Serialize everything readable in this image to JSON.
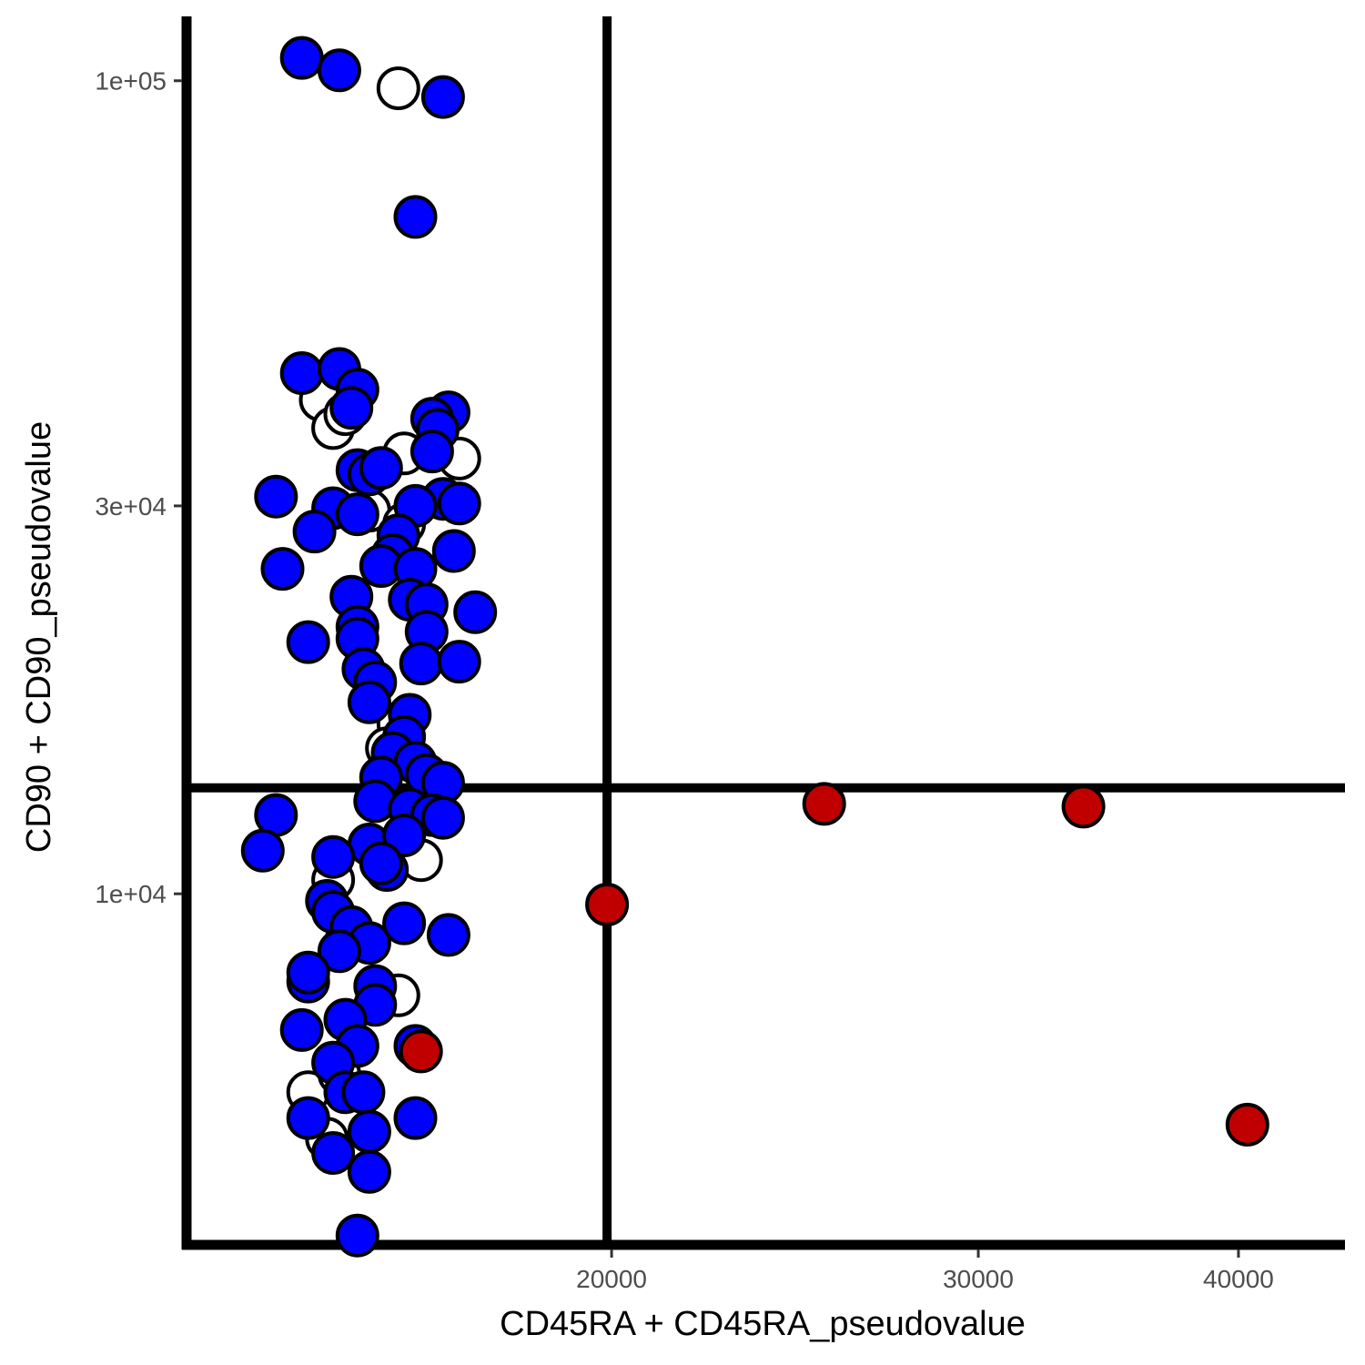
{
  "chart_data": {
    "type": "scatter",
    "xlabel": "CD45RA + CD45RA_pseudovalue",
    "ylabel": "CD90 + CD90_pseudovalue",
    "x_scale": "log",
    "y_scale": "log",
    "xlim": [
      12500,
      45000
    ],
    "ylim": [
      3700,
      120000
    ],
    "x_ticks": [
      {
        "value": 20000,
        "label": "20000"
      },
      {
        "value": 30000,
        "label": "30000"
      },
      {
        "value": 40000,
        "label": "40000"
      }
    ],
    "y_ticks": [
      {
        "value": 10000,
        "label": "1e+04"
      },
      {
        "value": 30000,
        "label": "3e+04"
      },
      {
        "value": 100000,
        "label": "1e+05"
      }
    ],
    "threshold_lines": {
      "x": 19900,
      "y": 13500
    },
    "grid": false,
    "legend": "none",
    "colors": {
      "blue": "#0000ff",
      "red": "#c00000",
      "hollow": "#ffffff",
      "outline": "#000000"
    },
    "series": [
      {
        "fill": "hollow",
        "points": [
          [
            15800,
            97900
          ],
          [
            14500,
            40500
          ],
          [
            14700,
            37400
          ],
          [
            14900,
            38900
          ],
          [
            15900,
            34800
          ],
          [
            16900,
            34300
          ],
          [
            15300,
            29600
          ],
          [
            15900,
            28500
          ],
          [
            15800,
            16200
          ],
          [
            15600,
            15100
          ],
          [
            14700,
            10400
          ],
          [
            16200,
            11000
          ],
          [
            14900,
            8700
          ],
          [
            15800,
            7500
          ],
          [
            14300,
            5700
          ],
          [
            14800,
            6000
          ],
          [
            14600,
            5000
          ]
        ]
      },
      {
        "fill": "blue",
        "points": [
          [
            14200,
            106700
          ],
          [
            14800,
            103000
          ],
          [
            16600,
            95500
          ],
          [
            16100,
            68000
          ],
          [
            14200,
            43700
          ],
          [
            14800,
            44200
          ],
          [
            15100,
            41700
          ],
          [
            15000,
            39600
          ],
          [
            16700,
            39100
          ],
          [
            16400,
            38400
          ],
          [
            16500,
            37200
          ],
          [
            16400,
            35000
          ],
          [
            15100,
            33200
          ],
          [
            15300,
            32800
          ],
          [
            15500,
            33400
          ],
          [
            13800,
            30800
          ],
          [
            16600,
            30600
          ],
          [
            16900,
            30200
          ],
          [
            14700,
            29800
          ],
          [
            15100,
            29300
          ],
          [
            16100,
            30000
          ],
          [
            14400,
            27900
          ],
          [
            15800,
            27600
          ],
          [
            15700,
            26100
          ],
          [
            16800,
            26400
          ],
          [
            15500,
            25300
          ],
          [
            16100,
            25100
          ],
          [
            13900,
            25100
          ],
          [
            15000,
            23200
          ],
          [
            16000,
            23000
          ],
          [
            16300,
            22700
          ],
          [
            17200,
            22200
          ],
          [
            16300,
            21000
          ],
          [
            15100,
            21300
          ],
          [
            14300,
            20400
          ],
          [
            15100,
            20600
          ],
          [
            16200,
            19200
          ],
          [
            16900,
            19300
          ],
          [
            15200,
            18900
          ],
          [
            15400,
            18200
          ],
          [
            15300,
            17200
          ],
          [
            16000,
            16600
          ],
          [
            15900,
            15600
          ],
          [
            15700,
            14900
          ],
          [
            16100,
            14500
          ],
          [
            16300,
            14000
          ],
          [
            15500,
            13900
          ],
          [
            16600,
            13700
          ],
          [
            15400,
            13000
          ],
          [
            16000,
            12700
          ],
          [
            16400,
            12500
          ],
          [
            16600,
            12400
          ],
          [
            13800,
            12500
          ],
          [
            13600,
            11300
          ],
          [
            15300,
            11500
          ],
          [
            15900,
            11800
          ],
          [
            14700,
            11100
          ],
          [
            15600,
            10700
          ],
          [
            15500,
            10900
          ],
          [
            14600,
            9800
          ],
          [
            14700,
            9500
          ],
          [
            15000,
            9100
          ],
          [
            15900,
            9200
          ],
          [
            16700,
            8900
          ],
          [
            15300,
            8700
          ],
          [
            14800,
            8500
          ],
          [
            14300,
            7800
          ],
          [
            14300,
            8000
          ],
          [
            15400,
            7700
          ],
          [
            15400,
            7300
          ],
          [
            14900,
            7000
          ],
          [
            14200,
            6800
          ],
          [
            15100,
            6500
          ],
          [
            16100,
            6500
          ],
          [
            14700,
            6200
          ],
          [
            14900,
            5700
          ],
          [
            15200,
            5700
          ],
          [
            14300,
            5300
          ],
          [
            15300,
            5100
          ],
          [
            16100,
            5300
          ],
          [
            14700,
            4800
          ],
          [
            15300,
            4550
          ],
          [
            15100,
            3800
          ]
        ]
      },
      {
        "fill": "red",
        "points": [
          [
            16200,
            6400
          ],
          [
            19900,
            9700
          ],
          [
            25300,
            12900
          ],
          [
            33700,
            12800
          ],
          [
            40400,
            5200
          ]
        ]
      }
    ]
  }
}
